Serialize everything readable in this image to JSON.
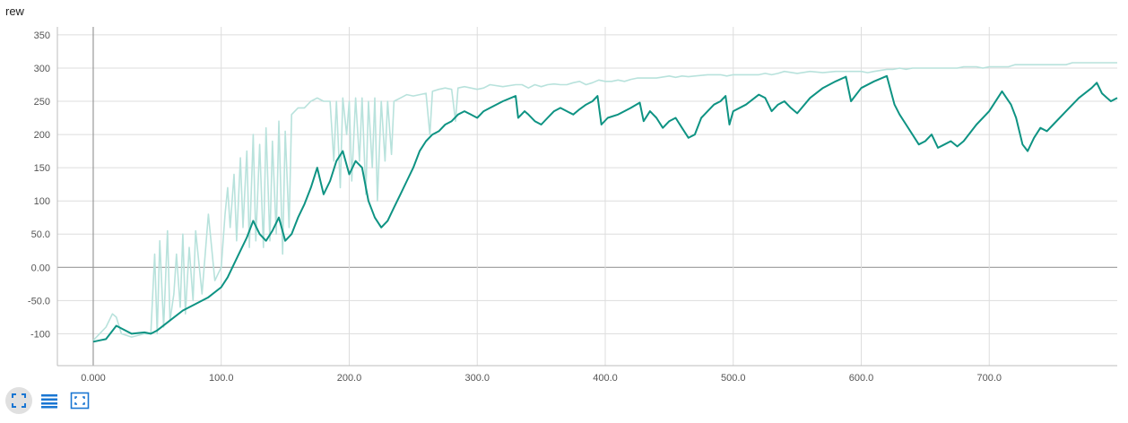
{
  "chart_data": {
    "type": "line",
    "title": "rew",
    "xlabel": "",
    "ylabel": "",
    "xlim": [
      -28,
      800
    ],
    "ylim": [
      -148,
      362
    ],
    "x_ticks": [
      0,
      100,
      200,
      300,
      400,
      500,
      600,
      700
    ],
    "x_tick_labels": [
      "0.000",
      "100.0",
      "200.0",
      "300.0",
      "400.0",
      "500.0",
      "600.0",
      "700.0"
    ],
    "y_ticks": [
      -100,
      -50,
      0,
      50,
      100,
      150,
      200,
      250,
      300,
      350
    ],
    "y_tick_labels": [
      "-100",
      "-50.0",
      "0.00",
      "50.0",
      "100",
      "150",
      "200",
      "250",
      "300",
      "350"
    ],
    "grid": true,
    "colors": {
      "smoothed": "#0e9383",
      "raw": "#b8e2dc",
      "grid": "#dddddd",
      "zero_axis": "#999999"
    },
    "series": [
      {
        "role": "smoothed",
        "x": [
          0,
          5,
          10,
          18,
          30,
          40,
          45,
          50,
          60,
          70,
          80,
          90,
          100,
          105,
          110,
          115,
          120,
          125,
          130,
          135,
          140,
          145,
          150,
          155,
          160,
          165,
          170,
          175,
          180,
          185,
          190,
          195,
          200,
          205,
          210,
          215,
          220,
          225,
          230,
          235,
          240,
          245,
          250,
          255,
          260,
          265,
          270,
          275,
          280,
          285,
          290,
          295,
          300,
          305,
          310,
          320,
          330,
          332,
          337,
          340,
          345,
          350,
          355,
          360,
          365,
          370,
          375,
          380,
          385,
          390,
          394,
          397,
          402,
          410,
          420,
          427,
          430,
          435,
          440,
          445,
          450,
          455,
          460,
          465,
          470,
          475,
          480,
          485,
          490,
          494,
          497,
          500,
          510,
          520,
          525,
          530,
          535,
          540,
          545,
          550,
          560,
          570,
          580,
          588,
          592,
          600,
          610,
          620,
          626,
          630,
          635,
          640,
          645,
          650,
          655,
          660,
          665,
          670,
          675,
          680,
          690,
          700,
          710,
          717,
          721,
          726,
          730,
          735,
          740,
          745,
          750,
          760,
          770,
          780,
          784,
          788,
          792,
          795,
          800
        ],
        "y": [
          -112,
          -110,
          -108,
          -88,
          -100,
          -98,
          -100,
          -95,
          -80,
          -65,
          -55,
          -45,
          -30,
          -15,
          5,
          25,
          45,
          70,
          50,
          40,
          55,
          75,
          40,
          50,
          75,
          95,
          120,
          150,
          110,
          130,
          160,
          175,
          140,
          160,
          150,
          100,
          75,
          60,
          70,
          90,
          110,
          130,
          150,
          175,
          190,
          200,
          205,
          215,
          220,
          230,
          235,
          230,
          225,
          235,
          240,
          250,
          258,
          225,
          235,
          230,
          220,
          215,
          225,
          235,
          240,
          235,
          230,
          238,
          245,
          250,
          258,
          215,
          225,
          230,
          240,
          248,
          220,
          235,
          225,
          210,
          220,
          225,
          210,
          195,
          200,
          225,
          235,
          245,
          250,
          258,
          215,
          235,
          245,
          260,
          255,
          235,
          245,
          250,
          240,
          232,
          255,
          270,
          280,
          287,
          250,
          270,
          280,
          288,
          245,
          230,
          215,
          200,
          185,
          190,
          200,
          180,
          185,
          190,
          182,
          190,
          215,
          235,
          265,
          245,
          225,
          185,
          175,
          195,
          210,
          205,
          215,
          235,
          255,
          270,
          278,
          262,
          255,
          250,
          255
        ]
      },
      {
        "role": "raw",
        "x": [
          0,
          5,
          10,
          15,
          18,
          22,
          30,
          40,
          45,
          48,
          50,
          52,
          55,
          58,
          60,
          63,
          65,
          68,
          70,
          72,
          75,
          78,
          80,
          85,
          90,
          95,
          100,
          103,
          105,
          107,
          110,
          112,
          115,
          117,
          120,
          122,
          125,
          127,
          130,
          133,
          135,
          138,
          140,
          143,
          145,
          148,
          150,
          153,
          155,
          160,
          165,
          170,
          175,
          180,
          185,
          188,
          190,
          193,
          195,
          198,
          200,
          202,
          205,
          208,
          210,
          213,
          215,
          218,
          220,
          222,
          225,
          228,
          230,
          233,
          235,
          240,
          245,
          250,
          255,
          260,
          263,
          265,
          270,
          275,
          280,
          283,
          285,
          290,
          295,
          300,
          305,
          310,
          320,
          330,
          335,
          340,
          345,
          350,
          355,
          360,
          365,
          370,
          375,
          380,
          385,
          390,
          395,
          400,
          405,
          410,
          415,
          420,
          425,
          430,
          440,
          450,
          455,
          460,
          465,
          470,
          480,
          490,
          495,
          500,
          505,
          510,
          520,
          525,
          530,
          535,
          540,
          550,
          560,
          570,
          580,
          590,
          600,
          605,
          610,
          620,
          625,
          630,
          635,
          640,
          645,
          650,
          655,
          660,
          665,
          670,
          675,
          680,
          685,
          690,
          695,
          700,
          705,
          710,
          715,
          720,
          725,
          730,
          735,
          740,
          745,
          750,
          755,
          760,
          765,
          770,
          775,
          780,
          785,
          790,
          795,
          800
        ],
        "y": [
          -110,
          -100,
          -90,
          -70,
          -75,
          -100,
          -105,
          -100,
          -100,
          20,
          -100,
          40,
          -90,
          55,
          -80,
          -40,
          20,
          -60,
          50,
          -70,
          30,
          -50,
          55,
          -40,
          80,
          -20,
          0,
          80,
          120,
          60,
          140,
          40,
          165,
          60,
          175,
          30,
          200,
          40,
          185,
          30,
          210,
          40,
          190,
          50,
          220,
          20,
          205,
          60,
          230,
          240,
          240,
          250,
          255,
          250,
          250,
          160,
          250,
          120,
          255,
          200,
          250,
          130,
          255,
          160,
          255,
          110,
          250,
          150,
          255,
          100,
          250,
          160,
          250,
          170,
          250,
          255,
          260,
          258,
          260,
          262,
          200,
          265,
          268,
          270,
          268,
          220,
          270,
          272,
          270,
          268,
          270,
          275,
          272,
          275,
          275,
          270,
          275,
          272,
          275,
          276,
          275,
          275,
          278,
          280,
          275,
          278,
          282,
          280,
          280,
          282,
          280,
          283,
          285,
          285,
          285,
          288,
          286,
          288,
          287,
          288,
          290,
          290,
          288,
          290,
          290,
          290,
          290,
          292,
          290,
          292,
          295,
          292,
          295,
          293,
          295,
          295,
          295,
          293,
          295,
          298,
          298,
          300,
          298,
          300,
          300,
          300,
          300,
          300,
          300,
          300,
          300,
          302,
          302,
          302,
          300,
          302,
          302,
          302,
          302,
          305,
          305,
          305,
          305,
          305,
          305,
          305,
          305,
          305,
          308,
          308,
          308,
          308,
          308,
          308,
          308,
          308
        ]
      }
    ]
  },
  "toolbar": {
    "buttons": [
      {
        "icon": "expand-icon"
      },
      {
        "icon": "data-table-icon"
      },
      {
        "icon": "fit-domain-icon"
      }
    ]
  }
}
